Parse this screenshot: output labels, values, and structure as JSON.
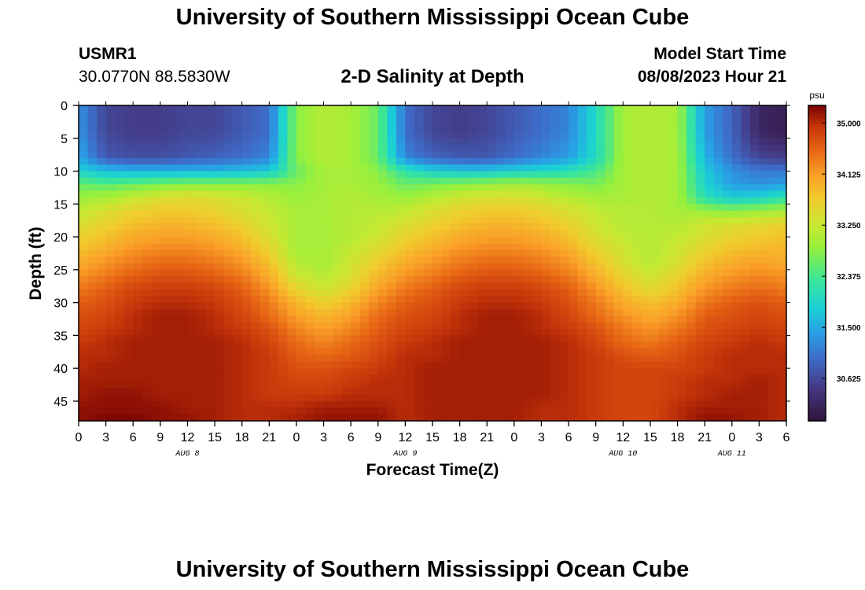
{
  "header": {
    "title": "University of Southern Mississippi Ocean Cube",
    "station_id": "USMR1",
    "coordinates": "30.0770N  88.5830W",
    "subtitle": "2-D Salinity at Depth",
    "model_start_label": "Model Start Time",
    "model_start_value": "08/08/2023 Hour 21"
  },
  "footer": {
    "title": "University of Southern Mississippi Ocean Cube"
  },
  "chart_data": {
    "type": "heatmap",
    "title": "2-D Salinity at Depth",
    "xlabel": "Forecast Time(Z)",
    "ylabel": "Depth (ft)",
    "x_unit": "forecast hours (model hour 0 = 00Z Aug 8)",
    "xlim": [
      0,
      78
    ],
    "ylim": [
      48,
      0
    ],
    "x_ticks": [
      0,
      3,
      6,
      9,
      12,
      15,
      18,
      21,
      24,
      27,
      30,
      33,
      36,
      39,
      42,
      45,
      48,
      51,
      54,
      57,
      60,
      63,
      66,
      69,
      72,
      75,
      78
    ],
    "x_tick_labels": [
      "0",
      "3",
      "6",
      "9",
      "12",
      "15",
      "18",
      "21",
      "0",
      "3",
      "6",
      "9",
      "12",
      "15",
      "18",
      "21",
      "0",
      "3",
      "6",
      "9",
      "12",
      "15",
      "18",
      "21",
      "0",
      "3",
      "6"
    ],
    "y_ticks": [
      0,
      5,
      10,
      15,
      20,
      25,
      30,
      35,
      40,
      45
    ],
    "y_tick_labels": [
      "0",
      "5",
      "10",
      "15",
      "20",
      "25",
      "30",
      "35",
      "40",
      "45"
    ],
    "day_labels": [
      {
        "text": "AUG 8",
        "x": 12
      },
      {
        "text": "AUG 9",
        "x": 36
      },
      {
        "text": "AUG 10",
        "x": 60
      },
      {
        "text": "AUG 11",
        "x": 72
      }
    ],
    "colorbar": {
      "unit": "psu",
      "min": 29.9,
      "max": 35.3,
      "ticks": [
        35.0,
        34.125,
        33.25,
        32.375,
        31.5,
        30.625
      ],
      "tick_labels": [
        "35.000",
        "34.125",
        "33.250",
        "32.375",
        "31.500",
        "30.625"
      ]
    },
    "grid": false,
    "x": [
      0,
      3,
      6,
      9,
      12,
      15,
      18,
      21,
      24,
      27,
      30,
      33,
      36,
      39,
      42,
      45,
      48,
      51,
      54,
      57,
      60,
      63,
      66,
      69,
      72,
      75,
      78
    ],
    "y": [
      0,
      4,
      8,
      10,
      12,
      14,
      16,
      18,
      20,
      22,
      24,
      26,
      28,
      30,
      32,
      34,
      36,
      38,
      40,
      42,
      44,
      46,
      48
    ],
    "z": [
      [
        31.3,
        30.6,
        30.5,
        30.5,
        30.6,
        30.6,
        30.8,
        31.0,
        32.8,
        33.1,
        33.0,
        32.6,
        31.0,
        30.6,
        30.5,
        30.6,
        30.8,
        31.0,
        31.2,
        32.0,
        33.0,
        33.1,
        33.0,
        31.4,
        30.9,
        30.2,
        30.1
      ],
      [
        31.3,
        30.6,
        30.5,
        30.5,
        30.6,
        30.6,
        30.8,
        31.0,
        32.8,
        33.1,
        33.0,
        32.6,
        31.0,
        30.6,
        30.5,
        30.6,
        30.8,
        31.0,
        31.2,
        32.0,
        33.0,
        33.1,
        33.0,
        31.4,
        30.9,
        30.2,
        30.1
      ],
      [
        31.5,
        30.8,
        30.7,
        30.7,
        30.8,
        30.9,
        31.0,
        31.2,
        32.8,
        33.1,
        33.0,
        32.6,
        31.2,
        30.9,
        30.8,
        30.8,
        31.0,
        31.2,
        31.4,
        32.0,
        33.0,
        33.1,
        33.0,
        31.6,
        31.0,
        30.6,
        30.5
      ],
      [
        31.9,
        31.7,
        31.6,
        31.6,
        31.6,
        31.6,
        31.7,
        31.8,
        32.6,
        33.0,
        33.0,
        32.8,
        32.2,
        31.9,
        31.8,
        31.8,
        31.9,
        32.0,
        32.1,
        32.4,
        33.0,
        33.1,
        33.0,
        31.8,
        31.3,
        31.1,
        31.1
      ],
      [
        32.6,
        32.5,
        32.6,
        32.7,
        32.8,
        32.8,
        32.8,
        32.8,
        32.8,
        33.0,
        33.0,
        32.9,
        32.6,
        32.7,
        32.8,
        32.9,
        33.0,
        32.9,
        32.8,
        32.7,
        33.0,
        33.1,
        33.0,
        31.9,
        31.4,
        31.3,
        31.4
      ],
      [
        32.9,
        33.0,
        33.2,
        33.4,
        33.5,
        33.4,
        33.3,
        33.1,
        32.9,
        33.0,
        33.1,
        33.0,
        32.9,
        33.1,
        33.3,
        33.4,
        33.4,
        33.3,
        33.1,
        33.0,
        33.0,
        33.1,
        33.0,
        32.1,
        31.8,
        31.9,
        32.2
      ],
      [
        33.2,
        33.4,
        33.6,
        33.7,
        33.7,
        33.6,
        33.4,
        33.2,
        33.0,
        33.0,
        33.1,
        33.1,
        33.2,
        33.4,
        33.6,
        33.7,
        33.7,
        33.6,
        33.4,
        33.2,
        33.1,
        33.1,
        33.0,
        32.9,
        32.8,
        32.9,
        33.0
      ],
      [
        33.4,
        33.6,
        33.8,
        33.9,
        33.9,
        33.8,
        33.6,
        33.3,
        33.0,
        33.0,
        33.1,
        33.2,
        33.4,
        33.6,
        33.8,
        33.9,
        33.9,
        33.8,
        33.6,
        33.3,
        33.1,
        33.1,
        33.1,
        33.3,
        33.4,
        33.5,
        33.6
      ],
      [
        33.6,
        33.8,
        34.0,
        34.1,
        34.1,
        34.0,
        33.8,
        33.4,
        33.0,
        33.0,
        33.1,
        33.3,
        33.6,
        33.8,
        34.0,
        34.1,
        34.1,
        34.0,
        33.8,
        33.4,
        33.2,
        33.1,
        33.2,
        33.4,
        33.6,
        33.7,
        33.8
      ],
      [
        33.8,
        34.0,
        34.2,
        34.3,
        34.3,
        34.2,
        34.0,
        33.6,
        33.0,
        33.0,
        33.2,
        33.5,
        33.8,
        34.0,
        34.2,
        34.3,
        34.3,
        34.2,
        34.0,
        33.6,
        33.3,
        33.1,
        33.3,
        33.6,
        33.8,
        33.9,
        33.9
      ],
      [
        34.0,
        34.2,
        34.4,
        34.5,
        34.5,
        34.4,
        34.2,
        33.8,
        33.1,
        33.0,
        33.3,
        33.7,
        34.0,
        34.2,
        34.4,
        34.5,
        34.5,
        34.4,
        34.2,
        33.8,
        33.4,
        33.1,
        33.4,
        33.8,
        34.0,
        34.1,
        34.0
      ],
      [
        34.2,
        34.4,
        34.6,
        34.7,
        34.7,
        34.6,
        34.4,
        34.0,
        33.3,
        33.1,
        33.4,
        33.9,
        34.2,
        34.4,
        34.6,
        34.7,
        34.7,
        34.6,
        34.4,
        34.0,
        33.6,
        33.3,
        33.6,
        34.0,
        34.2,
        34.3,
        34.2
      ],
      [
        34.4,
        34.6,
        34.8,
        34.9,
        34.9,
        34.8,
        34.6,
        34.2,
        33.6,
        33.3,
        33.6,
        34.1,
        34.4,
        34.6,
        34.8,
        34.9,
        34.9,
        34.8,
        34.6,
        34.2,
        33.8,
        33.5,
        33.8,
        34.2,
        34.4,
        34.5,
        34.4
      ],
      [
        34.6,
        34.7,
        34.9,
        35.0,
        35.0,
        34.9,
        34.7,
        34.4,
        33.9,
        33.6,
        33.9,
        34.3,
        34.6,
        34.7,
        34.9,
        35.0,
        35.0,
        34.9,
        34.7,
        34.4,
        34.0,
        33.8,
        34.0,
        34.4,
        34.6,
        34.7,
        34.6
      ],
      [
        34.7,
        34.8,
        35.0,
        35.1,
        35.1,
        35.0,
        34.8,
        34.5,
        34.1,
        33.9,
        34.1,
        34.5,
        34.7,
        34.8,
        35.0,
        35.1,
        35.1,
        35.0,
        34.8,
        34.5,
        34.2,
        34.0,
        34.2,
        34.6,
        34.7,
        34.8,
        34.7
      ],
      [
        34.8,
        34.9,
        35.0,
        35.1,
        35.1,
        35.0,
        34.9,
        34.7,
        34.3,
        34.1,
        34.3,
        34.6,
        34.8,
        34.9,
        35.0,
        35.1,
        35.1,
        35.0,
        34.9,
        34.7,
        34.4,
        34.2,
        34.4,
        34.7,
        34.8,
        34.9,
        34.8
      ],
      [
        34.9,
        35.0,
        35.1,
        35.1,
        35.1,
        35.1,
        35.0,
        34.8,
        34.5,
        34.3,
        34.5,
        34.7,
        34.9,
        35.0,
        35.1,
        35.1,
        35.1,
        35.1,
        35.0,
        34.8,
        34.5,
        34.4,
        34.6,
        34.8,
        34.9,
        35.0,
        34.9
      ],
      [
        35.0,
        35.0,
        35.1,
        35.1,
        35.1,
        35.1,
        35.0,
        34.9,
        34.6,
        34.5,
        34.6,
        34.8,
        35.0,
        35.0,
        35.1,
        35.1,
        35.1,
        35.1,
        35.0,
        34.9,
        34.7,
        34.6,
        34.7,
        34.9,
        35.0,
        35.0,
        35.0
      ],
      [
        35.0,
        35.1,
        35.1,
        35.1,
        35.1,
        35.1,
        35.0,
        34.9,
        34.7,
        34.7,
        34.8,
        34.9,
        35.0,
        35.1,
        35.1,
        35.1,
        35.1,
        35.1,
        35.0,
        34.9,
        34.8,
        34.8,
        34.8,
        34.9,
        35.0,
        35.0,
        35.0
      ],
      [
        35.1,
        35.1,
        35.1,
        35.1,
        35.1,
        35.1,
        35.0,
        34.9,
        34.8,
        34.8,
        34.9,
        35.0,
        35.0,
        35.1,
        35.1,
        35.1,
        35.1,
        35.1,
        35.0,
        34.9,
        34.8,
        34.8,
        34.9,
        35.0,
        35.0,
        35.1,
        35.0
      ],
      [
        35.1,
        35.2,
        35.2,
        35.1,
        35.1,
        35.1,
        35.0,
        34.9,
        34.9,
        34.9,
        35.0,
        35.0,
        35.0,
        35.1,
        35.1,
        35.1,
        35.1,
        35.1,
        35.0,
        34.9,
        34.8,
        34.8,
        34.9,
        35.0,
        35.1,
        35.1,
        35.0
      ],
      [
        35.2,
        35.2,
        35.2,
        35.2,
        35.1,
        35.1,
        35.0,
        35.0,
        35.0,
        35.1,
        35.1,
        35.1,
        35.0,
        35.1,
        35.1,
        35.1,
        35.1,
        35.0,
        35.0,
        34.9,
        34.8,
        34.8,
        35.0,
        35.1,
        35.1,
        35.1,
        35.0
      ],
      [
        35.2,
        35.3,
        35.3,
        35.2,
        35.2,
        35.1,
        35.0,
        35.0,
        35.1,
        35.2,
        35.2,
        35.2,
        35.0,
        35.1,
        35.1,
        35.1,
        35.1,
        35.0,
        35.0,
        34.9,
        34.8,
        34.8,
        35.0,
        35.2,
        35.2,
        35.1,
        35.0
      ]
    ]
  }
}
